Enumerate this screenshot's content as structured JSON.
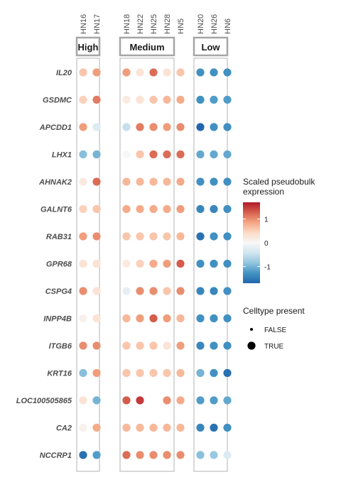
{
  "chart_data": {
    "type": "scatter",
    "facets": [
      {
        "name": "High",
        "samples": [
          "HN16",
          "HN17"
        ]
      },
      {
        "name": "Medium",
        "samples": [
          "HN18",
          "HN22",
          "HN25",
          "HN28",
          "HN5"
        ]
      },
      {
        "name": "Low",
        "samples": [
          "HN20",
          "HN26",
          "HN6"
        ]
      }
    ],
    "genes": [
      "IL20",
      "GSDMC",
      "APCDD1",
      "LHX1",
      "AHNAK2",
      "GALNT6",
      "RAB31",
      "GPR68",
      "CSPG4",
      "INPP4B",
      "ITGB6",
      "KRT16",
      "LOC100505865",
      "CA2",
      "NCCRP1"
    ],
    "values": {
      "IL20": [
        0.6,
        0.9,
        0.9,
        0.3,
        1.2,
        0.3,
        0.6,
        -1.3,
        -1.3,
        -1.3
      ],
      "GSDMC": [
        0.5,
        1.1,
        0.2,
        0.3,
        0.6,
        0.7,
        0.8,
        -1.3,
        -1.2,
        -1.2
      ],
      "APCDD1": [
        0.9,
        -0.3,
        -0.5,
        1.1,
        1.0,
        0.9,
        1.0,
        -1.7,
        -1.3,
        -1.3
      ],
      "LHX1": [
        -0.9,
        -1.0,
        0.0,
        0.6,
        1.2,
        1.2,
        1.2,
        -1.1,
        -1.1,
        -1.1
      ],
      "AHNAK2": [
        0.2,
        1.2,
        0.7,
        0.7,
        0.7,
        0.7,
        0.8,
        -1.3,
        -1.3,
        -1.3
      ],
      "GALNT6": [
        0.5,
        0.6,
        0.8,
        0.8,
        0.8,
        0.8,
        0.9,
        -1.4,
        -1.4,
        -1.3
      ],
      "RAB31": [
        0.9,
        1.0,
        0.6,
        0.6,
        0.6,
        0.6,
        0.7,
        -1.6,
        -1.3,
        -1.3
      ],
      "GPR68": [
        0.3,
        0.3,
        0.2,
        0.5,
        0.8,
        0.9,
        1.3,
        -1.3,
        -1.3,
        -1.3
      ],
      "CSPG4": [
        1.0,
        0.3,
        -0.2,
        1.0,
        1.0,
        0.6,
        1.0,
        -1.4,
        -1.4,
        -1.3
      ],
      "INPP4B": [
        0.1,
        0.3,
        0.7,
        0.9,
        1.3,
        0.9,
        0.7,
        -1.3,
        -1.3,
        -1.3
      ],
      "ITGB6": [
        1.0,
        1.0,
        0.6,
        0.6,
        0.6,
        0.3,
        0.9,
        -1.4,
        -1.3,
        -1.3
      ],
      "KRT16": [
        -0.9,
        0.9,
        0.6,
        0.6,
        0.6,
        0.6,
        0.7,
        -1.0,
        -1.3,
        -1.6
      ],
      "LOC100505865": [
        0.3,
        -1.0,
        1.3,
        1.5,
        null,
        1.0,
        0.8,
        -1.2,
        -1.2,
        -1.1
      ],
      "CA2": [
        0.1,
        0.8,
        0.7,
        0.7,
        0.7,
        0.7,
        0.7,
        -1.4,
        -1.6,
        -1.3
      ],
      "NCCRP1": [
        -1.6,
        -1.2,
        1.2,
        1.0,
        1.0,
        1.0,
        1.0,
        -0.9,
        -0.8,
        -0.3
      ]
    },
    "celltype_present": {
      "LOC100505865": [
        true,
        true,
        true,
        true,
        false,
        true,
        true,
        true,
        true,
        true
      ]
    },
    "color_legend": {
      "title": "Scaled pseudobulk expression",
      "title_lines": [
        "Scaled pseudobulk",
        "expression"
      ],
      "ticks": [
        1,
        0,
        -1
      ],
      "range": [
        -1.7,
        1.7
      ],
      "colors": [
        "#2166ac",
        "#4393c3",
        "#92c5de",
        "#d1e5f0",
        "#f7f7f7",
        "#fddbc7",
        "#f4a582",
        "#d6604d",
        "#b2182b"
      ]
    },
    "size_legend": {
      "title": "Celltype present",
      "entries": [
        "FALSE",
        "TRUE"
      ]
    }
  }
}
